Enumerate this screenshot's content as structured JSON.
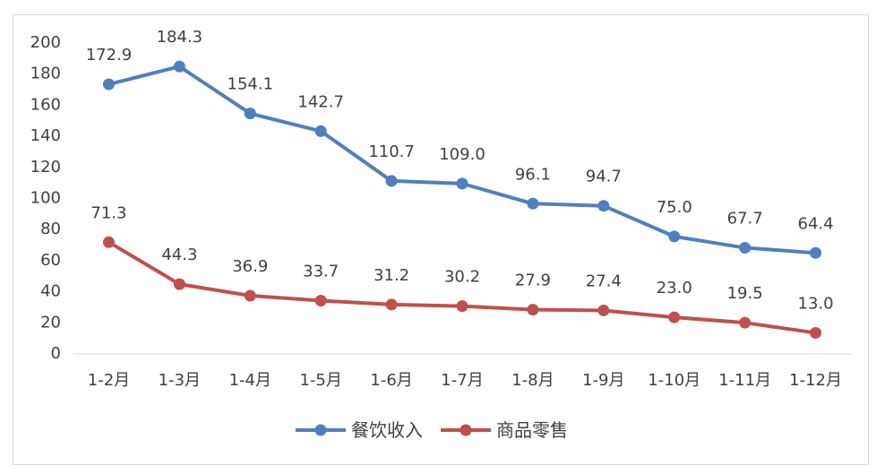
{
  "chart_data": {
    "type": "line",
    "categories": [
      "1-2月",
      "1-3月",
      "1-4月",
      "1-5月",
      "1-6月",
      "1-7月",
      "1-8月",
      "1-9月",
      "1-10月",
      "1-11月",
      "1-12月"
    ],
    "series": [
      {
        "name": "餐饮收入",
        "color": "#4f7fbe",
        "values": [
          172.9,
          184.3,
          154.1,
          142.7,
          110.7,
          109.0,
          96.1,
          94.7,
          75.0,
          67.7,
          64.4
        ],
        "labels": [
          "172.9",
          "184.3",
          "154.1",
          "142.7",
          "110.7",
          "109.0",
          "96.1",
          "94.7",
          "75.0",
          "67.7",
          "64.4"
        ]
      },
      {
        "name": "商品零售",
        "color": "#c0504d",
        "values": [
          71.3,
          44.3,
          36.9,
          33.7,
          31.2,
          30.2,
          27.9,
          27.4,
          23.0,
          19.5,
          13.0
        ],
        "labels": [
          "71.3",
          "44.3",
          "36.9",
          "33.7",
          "31.2",
          "30.2",
          "27.9",
          "27.4",
          "23.0",
          "19.5",
          "13.0"
        ]
      }
    ],
    "ylim": [
      0,
      200
    ],
    "yticks": [
      "0",
      "20",
      "40",
      "60",
      "80",
      "100",
      "120",
      "140",
      "160",
      "180",
      "200"
    ],
    "grid": false,
    "legend_position": "bottom"
  }
}
